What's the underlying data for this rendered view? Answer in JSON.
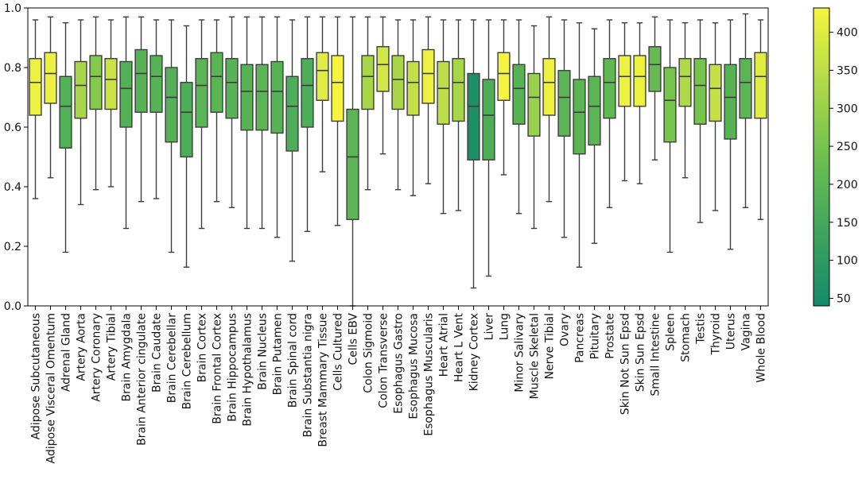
{
  "chart_data": {
    "type": "box",
    "title": "",
    "xlabel": "",
    "ylabel": "",
    "ylim": [
      0.0,
      1.0
    ],
    "yticks": [
      "0.0",
      "0.2",
      "0.4",
      "0.6",
      "0.8",
      "1.0"
    ],
    "grid": false,
    "colorbar": {
      "range": [
        40,
        432
      ],
      "ticks": [
        "50",
        "100",
        "150",
        "200",
        "250",
        "300",
        "350",
        "400"
      ],
      "low_color": "#138a6a",
      "high_color": "#f5f541"
    },
    "categories": [
      "Adipose Subcutaneous",
      "Adipose Visceral Omentum",
      "Adrenal Gland",
      "Artery Aorta",
      "Artery Coronary",
      "Artery Tibial",
      "Brain Amygdala",
      "Brain Anterior cingulate",
      "Brain Caudate",
      "Brain Cerebellar",
      "Brain Cerebellum",
      "Brain Cortex",
      "Brain Frontal Cortex",
      "Brain Hippocampus",
      "Brain Hypothalamus",
      "Brain Nucleus",
      "Brain Putamen",
      "Brain Spinal cord",
      "Brain Substantia nigra",
      "Breast Mammary Tissue",
      "Cells Cultured",
      "Cells EBV",
      "Colon Sigmoid",
      "Colon Transverse",
      "Esophagus Gastro",
      "Esophagus Mucosa",
      "Esophagus Muscularis",
      "Heart Atrial",
      "Heart L Vent",
      "Kidney Cortex",
      "Liver",
      "Lung",
      "Minor Salivary",
      "Muscle Skeletal",
      "Nerve Tibial",
      "Ovary",
      "Pancreas",
      "Pituitary",
      "Prostate",
      "Skin Not Sun Epsd",
      "Skin Sun Epsd",
      "Small Intestine",
      "Spleen",
      "Stomach",
      "Testis",
      "Thyroid",
      "Uterus",
      "Vagina",
      "Whole Blood"
    ],
    "boxes": [
      {
        "whislo": 0.36,
        "q1": 0.64,
        "med": 0.75,
        "q3": 0.83,
        "whishi": 0.96,
        "color_value": 420
      },
      {
        "whislo": 0.43,
        "q1": 0.68,
        "med": 0.78,
        "q3": 0.85,
        "whishi": 0.97,
        "color_value": 420
      },
      {
        "whislo": 0.18,
        "q1": 0.53,
        "med": 0.67,
        "q3": 0.77,
        "whishi": 0.95,
        "color_value": 180
      },
      {
        "whislo": 0.34,
        "q1": 0.63,
        "med": 0.74,
        "q3": 0.82,
        "whishi": 0.96,
        "color_value": 320
      },
      {
        "whislo": 0.39,
        "q1": 0.66,
        "med": 0.77,
        "q3": 0.84,
        "whishi": 0.97,
        "color_value": 270
      },
      {
        "whislo": 0.4,
        "q1": 0.66,
        "med": 0.76,
        "q3": 0.83,
        "whishi": 0.96,
        "color_value": 370
      },
      {
        "whislo": 0.26,
        "q1": 0.6,
        "med": 0.73,
        "q3": 0.82,
        "whishi": 0.97,
        "color_value": 180
      },
      {
        "whislo": 0.35,
        "q1": 0.65,
        "med": 0.78,
        "q3": 0.86,
        "whishi": 0.97,
        "color_value": 190
      },
      {
        "whislo": 0.36,
        "q1": 0.65,
        "med": 0.77,
        "q3": 0.84,
        "whishi": 0.96,
        "color_value": 190
      },
      {
        "whislo": 0.18,
        "q1": 0.55,
        "med": 0.7,
        "q3": 0.8,
        "whishi": 0.96,
        "color_value": 180
      },
      {
        "whislo": 0.13,
        "q1": 0.5,
        "med": 0.65,
        "q3": 0.75,
        "whishi": 0.94,
        "color_value": 170
      },
      {
        "whislo": 0.26,
        "q1": 0.6,
        "med": 0.74,
        "q3": 0.83,
        "whishi": 0.96,
        "color_value": 200
      },
      {
        "whislo": 0.35,
        "q1": 0.65,
        "med": 0.77,
        "q3": 0.85,
        "whishi": 0.96,
        "color_value": 200
      },
      {
        "whislo": 0.33,
        "q1": 0.63,
        "med": 0.75,
        "q3": 0.83,
        "whishi": 0.97,
        "color_value": 190
      },
      {
        "whislo": 0.26,
        "q1": 0.59,
        "med": 0.72,
        "q3": 0.81,
        "whishi": 0.97,
        "color_value": 190
      },
      {
        "whislo": 0.26,
        "q1": 0.59,
        "med": 0.72,
        "q3": 0.81,
        "whishi": 0.97,
        "color_value": 200
      },
      {
        "whislo": 0.23,
        "q1": 0.58,
        "med": 0.72,
        "q3": 0.82,
        "whishi": 0.97,
        "color_value": 190
      },
      {
        "whislo": 0.15,
        "q1": 0.52,
        "med": 0.67,
        "q3": 0.77,
        "whishi": 0.96,
        "color_value": 170
      },
      {
        "whislo": 0.25,
        "q1": 0.6,
        "med": 0.74,
        "q3": 0.83,
        "whishi": 0.97,
        "color_value": 170
      },
      {
        "whislo": 0.45,
        "q1": 0.69,
        "med": 0.79,
        "q3": 0.85,
        "whishi": 0.97,
        "color_value": 400
      },
      {
        "whislo": 0.27,
        "q1": 0.62,
        "med": 0.75,
        "q3": 0.84,
        "whishi": 0.97,
        "color_value": 430
      },
      {
        "whislo": 0.0,
        "q1": 0.29,
        "med": 0.5,
        "q3": 0.66,
        "whishi": 0.97,
        "color_value": 200
      },
      {
        "whislo": 0.39,
        "q1": 0.66,
        "med": 0.77,
        "q3": 0.84,
        "whishi": 0.97,
        "color_value": 320
      },
      {
        "whislo": 0.51,
        "q1": 0.72,
        "med": 0.81,
        "q3": 0.87,
        "whishi": 0.97,
        "color_value": 380
      },
      {
        "whislo": 0.39,
        "q1": 0.66,
        "med": 0.76,
        "q3": 0.84,
        "whishi": 0.96,
        "color_value": 320
      },
      {
        "whislo": 0.37,
        "q1": 0.64,
        "med": 0.75,
        "q3": 0.82,
        "whishi": 0.96,
        "color_value": 360
      },
      {
        "whislo": 0.41,
        "q1": 0.68,
        "med": 0.78,
        "q3": 0.86,
        "whishi": 0.97,
        "color_value": 420
      },
      {
        "whislo": 0.31,
        "q1": 0.61,
        "med": 0.73,
        "q3": 0.82,
        "whishi": 0.96,
        "color_value": 350
      },
      {
        "whislo": 0.32,
        "q1": 0.62,
        "med": 0.75,
        "q3": 0.83,
        "whishi": 0.96,
        "color_value": 320
      },
      {
        "whislo": 0.06,
        "q1": 0.49,
        "med": 0.67,
        "q3": 0.78,
        "whishi": 0.96,
        "color_value": 60
      },
      {
        "whislo": 0.1,
        "q1": 0.49,
        "med": 0.64,
        "q3": 0.76,
        "whishi": 0.96,
        "color_value": 170
      },
      {
        "whislo": 0.44,
        "q1": 0.69,
        "med": 0.78,
        "q3": 0.85,
        "whishi": 0.96,
        "color_value": 430
      },
      {
        "whislo": 0.31,
        "q1": 0.61,
        "med": 0.73,
        "q3": 0.81,
        "whishi": 0.96,
        "color_value": 190
      },
      {
        "whislo": 0.26,
        "q1": 0.57,
        "med": 0.7,
        "q3": 0.78,
        "whishi": 0.94,
        "color_value": 300
      },
      {
        "whislo": 0.35,
        "q1": 0.64,
        "med": 0.75,
        "q3": 0.83,
        "whishi": 0.97,
        "color_value": 420
      },
      {
        "whislo": 0.23,
        "q1": 0.57,
        "med": 0.7,
        "q3": 0.79,
        "whishi": 0.96,
        "color_value": 200
      },
      {
        "whislo": 0.13,
        "q1": 0.51,
        "med": 0.65,
        "q3": 0.76,
        "whishi": 0.95,
        "color_value": 200
      },
      {
        "whislo": 0.21,
        "q1": 0.54,
        "med": 0.67,
        "q3": 0.77,
        "whishi": 0.93,
        "color_value": 200
      },
      {
        "whislo": 0.33,
        "q1": 0.63,
        "med": 0.75,
        "q3": 0.83,
        "whishi": 0.96,
        "color_value": 210
      },
      {
        "whislo": 0.42,
        "q1": 0.67,
        "med": 0.77,
        "q3": 0.84,
        "whishi": 0.95,
        "color_value": 420
      },
      {
        "whislo": 0.41,
        "q1": 0.67,
        "med": 0.77,
        "q3": 0.84,
        "whishi": 0.95,
        "color_value": 420
      },
      {
        "whislo": 0.49,
        "q1": 0.72,
        "med": 0.81,
        "q3": 0.87,
        "whishi": 0.97,
        "color_value": 220
      },
      {
        "whislo": 0.18,
        "q1": 0.55,
        "med": 0.69,
        "q3": 0.8,
        "whishi": 0.96,
        "color_value": 250
      },
      {
        "whislo": 0.43,
        "q1": 0.67,
        "med": 0.77,
        "q3": 0.83,
        "whishi": 0.95,
        "color_value": 330
      },
      {
        "whislo": 0.28,
        "q1": 0.61,
        "med": 0.74,
        "q3": 0.83,
        "whishi": 0.96,
        "color_value": 250
      },
      {
        "whislo": 0.32,
        "q1": 0.62,
        "med": 0.73,
        "q3": 0.81,
        "whishi": 0.95,
        "color_value": 360
      },
      {
        "whislo": 0.19,
        "q1": 0.56,
        "med": 0.7,
        "q3": 0.81,
        "whishi": 0.96,
        "color_value": 190
      },
      {
        "whislo": 0.33,
        "q1": 0.63,
        "med": 0.75,
        "q3": 0.83,
        "whishi": 0.98,
        "color_value": 200
      },
      {
        "whislo": 0.29,
        "q1": 0.63,
        "med": 0.77,
        "q3": 0.85,
        "whishi": 0.96,
        "color_value": 400
      }
    ]
  }
}
